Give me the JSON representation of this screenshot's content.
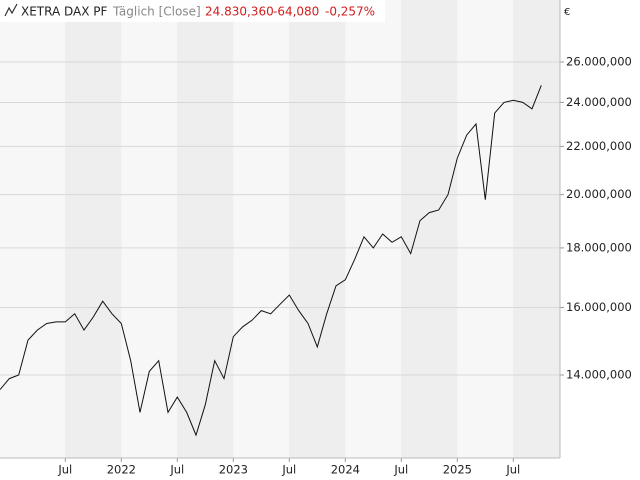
{
  "chart_data": {
    "type": "line",
    "title": "XETRA DAX PF",
    "subtitle": "Täglich [Close]",
    "last": "24.830,360",
    "change": "-64,080",
    "change_pct": "-0,257%",
    "y_unit": "€",
    "x": [
      "2020-12",
      "2021-01",
      "2021-02",
      "2021-03",
      "2021-04",
      "2021-05",
      "2021-06",
      "2021-07",
      "2021-08",
      "2021-09",
      "2021-10",
      "2021-11",
      "2021-12",
      "2022-01",
      "2022-02",
      "2022-03",
      "2022-04",
      "2022-05",
      "2022-06",
      "2022-07",
      "2022-08",
      "2022-09",
      "2022-10",
      "2022-11",
      "2022-12",
      "2023-01",
      "2023-02",
      "2023-03",
      "2023-04",
      "2023-05",
      "2023-06",
      "2023-07",
      "2023-08",
      "2023-09",
      "2023-10",
      "2023-11",
      "2023-12",
      "2024-01",
      "2024-02",
      "2024-03",
      "2024-04",
      "2024-05",
      "2024-06",
      "2024-07",
      "2024-08",
      "2024-09",
      "2024-10",
      "2024-11",
      "2024-12",
      "2025-01",
      "2025-02",
      "2025-03",
      "2025-04",
      "2025-05",
      "2025-06",
      "2025-07",
      "2025-08",
      "2025-09",
      "2025-10"
    ],
    "series": [
      {
        "name": "XETRA DAX PF",
        "color": "#111111",
        "values": [
          13600,
          13900,
          14000,
          15000,
          15300,
          15500,
          15550,
          15550,
          15800,
          15300,
          15700,
          16200,
          15800,
          15500,
          14400,
          13000,
          14100,
          14400,
          13000,
          13400,
          13000,
          12430,
          13200,
          14400,
          13900,
          15100,
          15400,
          15600,
          15900,
          15800,
          16100,
          16400,
          15900,
          15500,
          14800,
          15800,
          16700,
          16900,
          17600,
          18400,
          18000,
          18500,
          18200,
          18400,
          17800,
          19000,
          19300,
          19400,
          20000,
          21500,
          22500,
          23000,
          19800,
          23500,
          24000,
          24100,
          24000,
          23700,
          24830
        ]
      }
    ],
    "xlim": [
      "2020-12",
      "2025-12"
    ],
    "xticks": [
      {
        "value": "2021-07",
        "label": "Jul"
      },
      {
        "value": "2022-01",
        "label": "2022"
      },
      {
        "value": "2022-07",
        "label": "Jul"
      },
      {
        "value": "2023-01",
        "label": "2023"
      },
      {
        "value": "2023-07",
        "label": "Jul"
      },
      {
        "value": "2024-01",
        "label": "2024"
      },
      {
        "value": "2024-07",
        "label": "Jul"
      },
      {
        "value": "2025-01",
        "label": "2025"
      },
      {
        "value": "2025-07",
        "label": "Jul"
      }
    ],
    "ylim": [
      11880,
      29390
    ],
    "yticks": [
      {
        "value": 14000,
        "label": "14.000,000"
      },
      {
        "value": 16000,
        "label": "16.000,000"
      },
      {
        "value": 18000,
        "label": "18.000,000"
      },
      {
        "value": 20000,
        "label": "20.000,000"
      },
      {
        "value": 22000,
        "label": "22.000,000"
      },
      {
        "value": 24000,
        "label": "24.000,000"
      },
      {
        "value": 26000,
        "label": "26.000,000"
      }
    ],
    "log_y": true,
    "grid": true
  }
}
